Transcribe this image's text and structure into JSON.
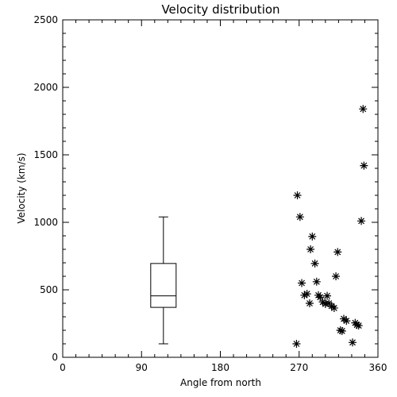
{
  "chart_data": {
    "type": "scatter",
    "title": "Velocity distribution",
    "xlabel": "Angle from north",
    "ylabel": "Velocity (km/s)",
    "xlim": [
      0,
      360
    ],
    "ylim": [
      0,
      2500
    ],
    "xticks": [
      0,
      90,
      180,
      270,
      360
    ],
    "yticks": [
      0,
      500,
      1000,
      1500,
      2000,
      2500
    ],
    "grid": false,
    "marker": "asterisk",
    "boxplot": {
      "x": 115,
      "min": 100,
      "q1": 370,
      "median": 455,
      "q3": 695,
      "max": 1040
    },
    "points": [
      {
        "x": 267,
        "y": 100
      },
      {
        "x": 268,
        "y": 1200
      },
      {
        "x": 271,
        "y": 1040
      },
      {
        "x": 273,
        "y": 550
      },
      {
        "x": 276,
        "y": 460
      },
      {
        "x": 279,
        "y": 470
      },
      {
        "x": 282,
        "y": 400
      },
      {
        "x": 283,
        "y": 800
      },
      {
        "x": 285,
        "y": 895
      },
      {
        "x": 288,
        "y": 695
      },
      {
        "x": 290,
        "y": 560
      },
      {
        "x": 292,
        "y": 460
      },
      {
        "x": 294,
        "y": 445
      },
      {
        "x": 297,
        "y": 410
      },
      {
        "x": 300,
        "y": 395
      },
      {
        "x": 302,
        "y": 455
      },
      {
        "x": 304,
        "y": 400
      },
      {
        "x": 307,
        "y": 380
      },
      {
        "x": 310,
        "y": 365
      },
      {
        "x": 312,
        "y": 600
      },
      {
        "x": 314,
        "y": 780
      },
      {
        "x": 317,
        "y": 200
      },
      {
        "x": 319,
        "y": 195
      },
      {
        "x": 321,
        "y": 285
      },
      {
        "x": 324,
        "y": 270
      },
      {
        "x": 331,
        "y": 110
      },
      {
        "x": 334,
        "y": 255
      },
      {
        "x": 336,
        "y": 240
      },
      {
        "x": 338,
        "y": 235
      },
      {
        "x": 341,
        "y": 1010
      },
      {
        "x": 343,
        "y": 1840
      },
      {
        "x": 344,
        "y": 1420
      }
    ]
  }
}
